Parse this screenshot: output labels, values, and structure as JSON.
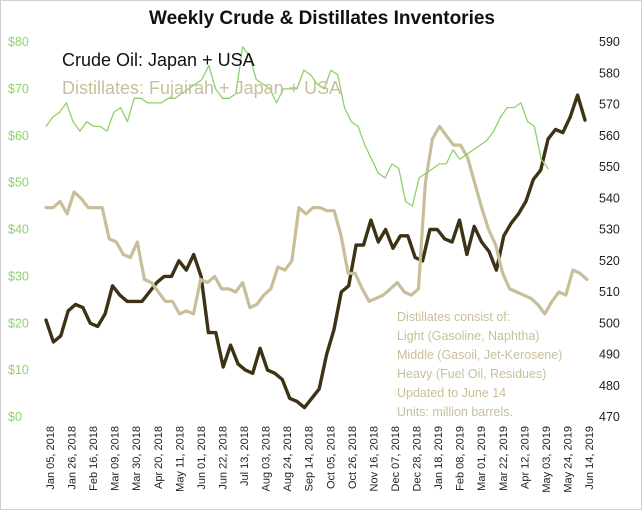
{
  "chart_data": {
    "type": "line",
    "title": "Weekly Crude & Distillates Inventories",
    "legend": [
      "Crude Oil: Japan + USA",
      "Distillates: Fujairah + Japan + USA"
    ],
    "left_axis": {
      "ticks": [
        "$0",
        "$10",
        "$20",
        "$30",
        "$40",
        "$50",
        "$60",
        "$70",
        "$80"
      ],
      "ylim": [
        0,
        80
      ],
      "color": "#8fd16b"
    },
    "right_axis": {
      "ticks": [
        "470",
        "480",
        "490",
        "500",
        "510",
        "520",
        "530",
        "540",
        "550",
        "560",
        "570",
        "580",
        "590"
      ],
      "ylim": [
        470,
        590
      ]
    },
    "x_tick_labels": [
      "Jan 05, 2018",
      "Jan 26, 2018",
      "Feb 16, 2018",
      "Mar 09, 2018",
      "Mar 30, 2018",
      "Apr 20, 2018",
      "May 11, 2018",
      "Jun 01, 2018",
      "Jun 22, 2018",
      "Jul 13, 2018",
      "Aug 03, 2018",
      "Aug 24, 2018",
      "Sep 14, 2018",
      "Oct 05, 2018",
      "Oct 26, 2018",
      "Nov 16, 2018",
      "Dec 07, 2018",
      "Dec 28, 2018",
      "Jan 18, 2019",
      "Feb 08, 2019",
      "Mar 01, 2019",
      "Mar 22, 2019",
      "Apr 12, 2019",
      "May 03, 2019",
      "May 24, 2019",
      "Jun 14, 2019"
    ],
    "series": [
      {
        "name": "Crude Oil: Japan + USA",
        "axis": "right",
        "color": "#3d3215",
        "values": [
          501,
          494,
          496,
          504,
          506,
          505,
          500,
          499,
          503,
          512,
          509,
          507,
          507,
          507,
          510,
          513,
          515,
          515,
          520,
          517,
          522,
          515,
          497,
          497,
          486,
          493,
          487,
          485,
          484,
          492,
          485,
          484,
          482,
          476,
          475,
          473,
          476,
          479,
          490,
          498,
          510,
          512,
          525,
          525,
          533,
          526,
          530,
          524,
          528,
          528,
          521,
          520,
          530,
          530,
          527,
          526,
          533,
          522,
          531,
          526,
          523,
          517,
          528,
          532,
          535,
          539,
          546,
          549,
          559,
          562,
          561,
          566,
          573,
          565
        ]
      },
      {
        "name": "Distillates: Fujairah + Japan + USA",
        "axis": "right",
        "color": "#c8bf9a",
        "values": [
          537,
          537,
          539,
          535,
          542,
          540,
          537,
          537,
          537,
          527,
          526,
          522,
          521,
          526,
          514,
          513,
          510,
          507,
          507,
          503,
          504,
          503,
          514,
          513,
          515,
          511,
          511,
          510,
          513,
          505,
          506,
          509,
          511,
          518,
          517,
          520,
          537,
          535,
          537,
          537,
          536,
          536,
          528,
          516,
          516,
          511,
          507,
          508,
          509,
          511,
          513,
          510,
          509,
          511,
          545,
          559,
          563,
          560,
          557,
          557,
          553,
          545,
          537,
          530,
          525,
          516,
          511,
          510,
          509,
          508,
          506,
          503,
          507,
          510,
          509,
          517,
          516,
          514
        ]
      },
      {
        "name": "",
        "axis": "left",
        "color": "#8fd16b",
        "values": [
          62,
          64,
          65,
          67,
          63,
          61,
          63,
          62,
          62,
          61,
          65,
          66,
          63,
          68,
          68,
          67,
          67,
          67,
          68,
          68,
          69,
          70,
          71,
          72,
          75,
          70,
          68,
          68,
          69,
          79,
          77,
          72,
          71,
          70,
          67,
          70,
          70,
          70,
          74,
          73,
          71,
          70,
          74,
          73,
          66,
          63,
          62,
          58,
          55,
          52,
          51,
          54,
          53,
          46,
          45,
          51,
          52,
          53,
          54,
          54,
          57,
          55,
          56,
          57,
          58,
          59,
          61,
          64,
          66,
          66,
          67,
          63,
          62,
          55,
          53
        ]
      }
    ]
  }
}
